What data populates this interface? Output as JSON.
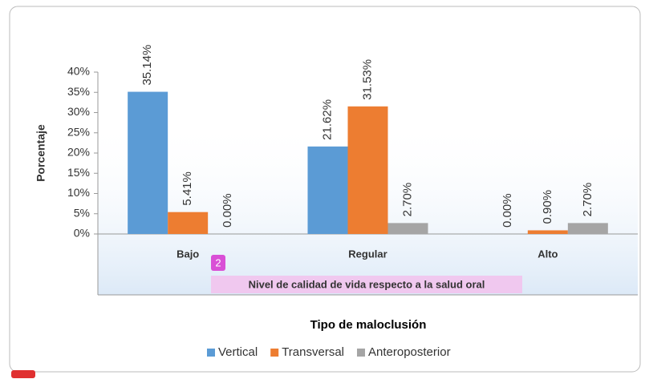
{
  "chart_data": {
    "type": "bar",
    "title": "Tipo de maloclusión",
    "x_label": "Nivel de calidad de vida respecto a la salud oral",
    "y_label": "Porcentaje",
    "annotations": [
      "2"
    ],
    "categories": [
      "Bajo",
      "Regular",
      "Alto"
    ],
    "series": [
      {
        "name": "Vertical",
        "color": "#5b9bd5",
        "values": [
          35.14,
          21.62,
          0.0
        ],
        "value_labels": [
          "35.14%",
          "21.62%",
          "0.00%"
        ]
      },
      {
        "name": "Transversal",
        "color": "#ed7d31",
        "values": [
          5.41,
          31.53,
          0.9
        ],
        "value_labels": [
          "5.41%",
          "31.53%",
          "0.90%"
        ]
      },
      {
        "name": "Anteroposterior",
        "color": "#a5a5a5",
        "values": [
          0.0,
          2.7,
          2.7
        ],
        "value_labels": [
          "0.00%",
          "2.70%",
          "2.70%"
        ]
      }
    ],
    "ylim": [
      0,
      40
    ],
    "yticks": [
      {
        "value": 0,
        "label": "0%"
      },
      {
        "value": 5,
        "label": "5%"
      },
      {
        "value": 10,
        "label": "10%"
      },
      {
        "value": 15,
        "label": "15%"
      },
      {
        "value": 20,
        "label": "20%"
      },
      {
        "value": 25,
        "label": "25%"
      },
      {
        "value": 30,
        "label": "30%"
      },
      {
        "value": 35,
        "label": "35%"
      },
      {
        "value": 40,
        "label": "40%"
      }
    ],
    "grid": false,
    "legend": "bottom"
  }
}
